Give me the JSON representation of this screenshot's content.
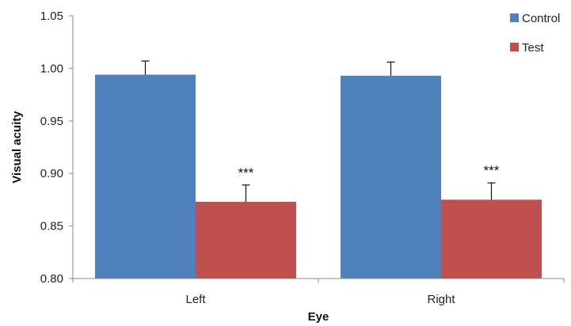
{
  "chart_data": {
    "type": "bar",
    "categories": [
      "Left",
      "Right"
    ],
    "series": [
      {
        "name": "Control",
        "color": "#4f81bd",
        "values": [
          0.994,
          0.993
        ],
        "errors": [
          0.013,
          0.013
        ]
      },
      {
        "name": "Test",
        "color": "#c0504d",
        "values": [
          0.873,
          0.875
        ],
        "errors": [
          0.016,
          0.016
        ]
      }
    ],
    "annotations": [
      {
        "category": "Left",
        "series": "Test",
        "text": "***"
      },
      {
        "category": "Right",
        "series": "Test",
        "text": "***"
      }
    ],
    "xlabel": "Eye",
    "ylabel": "Visual acuity",
    "ylim": [
      0.8,
      1.05
    ],
    "yticks": [
      "0.80",
      "0.85",
      "0.90",
      "0.95",
      "1.00",
      "1.05"
    ],
    "legend_position": "top-right",
    "grid": false
  }
}
